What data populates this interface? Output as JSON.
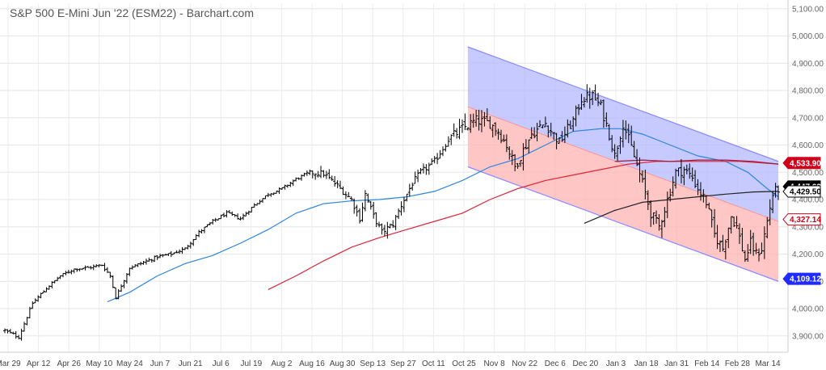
{
  "chart_data": {
    "type": "ohlc",
    "title": "S&P 500 E-Mini Jun '22 (ESM22) - Barchart.com",
    "ylim": [
      3840,
      5120
    ],
    "y_ticks": [
      "3,900.00",
      "4,000.00",
      "4,100.00",
      "4,200.00",
      "4,300.00",
      "4,400.00",
      "4,500.00",
      "4,600.00",
      "4,700.00",
      "4,800.00",
      "4,900.00",
      "5,000.00",
      "5,100.00"
    ],
    "y_tick_values": [
      3900,
      4000,
      4100,
      4200,
      4300,
      4400,
      4500,
      4600,
      4700,
      4800,
      4900,
      5000,
      5100
    ],
    "x_ticks": [
      "Mar 29",
      "Apr 12",
      "Apr 26",
      "May 10",
      "May 24",
      "Jun 7",
      "Jun 21",
      "Jul 6",
      "Jul 19",
      "Aug 2",
      "Aug 16",
      "Aug 30",
      "Sep 13",
      "Sep 27",
      "Oct 11",
      "Oct 25",
      "Nov 8",
      "Nov 22",
      "Dec 6",
      "Dec 20",
      "Jan 3",
      "Jan 18",
      "Jan 31",
      "Feb 14",
      "Feb 28",
      "Mar 14"
    ],
    "grid": true,
    "colors": {
      "bars": "#000000",
      "ma_blue": "#2e86de",
      "ma_red": "#e0243a",
      "ma_dark_red": "#9b1b3c",
      "ma_black": "#222222",
      "channel_upper": "#b3b8ff",
      "channel_lower": "#ffb3b3",
      "channel_edge_blue": "#8a8aff",
      "channel_edge_red": "#ff8a8a"
    },
    "key_anchors": [
      [
        0,
        3920
      ],
      [
        5,
        3895
      ],
      [
        10,
        4020
      ],
      [
        15,
        4075
      ],
      [
        20,
        4120
      ],
      [
        25,
        4145
      ],
      [
        30,
        4150
      ],
      [
        35,
        4160
      ],
      [
        38,
        4120
      ],
      [
        40,
        4040
      ],
      [
        45,
        4150
      ],
      [
        50,
        4170
      ],
      [
        55,
        4190
      ],
      [
        60,
        4200
      ],
      [
        65,
        4220
      ],
      [
        70,
        4280
      ],
      [
        75,
        4320
      ],
      [
        80,
        4350
      ],
      [
        85,
        4330
      ],
      [
        90,
        4380
      ],
      [
        95,
        4420
      ],
      [
        100,
        4440
      ],
      [
        105,
        4475
      ],
      [
        110,
        4500
      ],
      [
        115,
        4495
      ],
      [
        120,
        4450
      ],
      [
        125,
        4400
      ],
      [
        128,
        4330
      ],
      [
        130,
        4420
      ],
      [
        133,
        4340
      ],
      [
        136,
        4280
      ],
      [
        140,
        4310
      ],
      [
        143,
        4380
      ],
      [
        147,
        4460
      ],
      [
        150,
        4500
      ],
      [
        155,
        4540
      ],
      [
        160,
        4620
      ],
      [
        165,
        4660
      ],
      [
        170,
        4690
      ],
      [
        175,
        4680
      ],
      [
        178,
        4650
      ],
      [
        181,
        4600
      ],
      [
        184,
        4520
      ],
      [
        186,
        4560
      ],
      [
        190,
        4640
      ],
      [
        195,
        4680
      ],
      [
        200,
        4610
      ],
      [
        205,
        4690
      ],
      [
        208,
        4770
      ],
      [
        212,
        4780
      ],
      [
        215,
        4740
      ],
      [
        218,
        4640
      ],
      [
        220,
        4560
      ],
      [
        223,
        4680
      ],
      [
        226,
        4590
      ],
      [
        230,
        4460
      ],
      [
        233,
        4350
      ],
      [
        236,
        4300
      ],
      [
        239,
        4400
      ],
      [
        242,
        4500
      ],
      [
        245,
        4510
      ],
      [
        248,
        4480
      ],
      [
        250,
        4440
      ],
      [
        253,
        4390
      ],
      [
        256,
        4270
      ],
      [
        259,
        4220
      ],
      [
        262,
        4340
      ],
      [
        264,
        4300
      ],
      [
        267,
        4180
      ],
      [
        269,
        4240
      ],
      [
        271,
        4200
      ],
      [
        273,
        4220
      ],
      [
        275,
        4320
      ],
      [
        277,
        4420
      ],
      [
        279,
        4440
      ]
    ],
    "moving_averages": [
      {
        "color_key": "ma_blue",
        "points": [
          [
            37,
            4025
          ],
          [
            45,
            4060
          ],
          [
            55,
            4120
          ],
          [
            65,
            4165
          ],
          [
            75,
            4195
          ],
          [
            85,
            4240
          ],
          [
            95,
            4290
          ],
          [
            105,
            4350
          ],
          [
            115,
            4385
          ],
          [
            125,
            4395
          ],
          [
            135,
            4400
          ],
          [
            145,
            4410
          ],
          [
            155,
            4430
          ],
          [
            165,
            4470
          ],
          [
            175,
            4520
          ],
          [
            185,
            4550
          ],
          [
            195,
            4600
          ],
          [
            205,
            4650
          ],
          [
            215,
            4660
          ],
          [
            222,
            4660
          ],
          [
            230,
            4640
          ],
          [
            240,
            4600
          ],
          [
            250,
            4560
          ],
          [
            260,
            4540
          ],
          [
            268,
            4500
          ],
          [
            275,
            4440
          ],
          [
            279,
            4410
          ]
        ]
      },
      {
        "color_key": "ma_red",
        "points": [
          [
            95,
            4070
          ],
          [
            105,
            4120
          ],
          [
            115,
            4175
          ],
          [
            125,
            4225
          ],
          [
            135,
            4260
          ],
          [
            145,
            4290
          ],
          [
            155,
            4320
          ],
          [
            165,
            4350
          ],
          [
            175,
            4400
          ],
          [
            185,
            4440
          ],
          [
            195,
            4470
          ],
          [
            205,
            4490
          ],
          [
            215,
            4510
          ],
          [
            225,
            4530
          ],
          [
            235,
            4540
          ],
          [
            245,
            4540
          ],
          [
            255,
            4540
          ],
          [
            265,
            4540
          ],
          [
            272,
            4535
          ],
          [
            279,
            4530
          ]
        ]
      },
      {
        "color_key": "ma_dark_red",
        "points": [
          [
            220,
            4540
          ],
          [
            230,
            4545
          ],
          [
            240,
            4540
          ],
          [
            250,
            4545
          ],
          [
            260,
            4545
          ],
          [
            270,
            4540
          ],
          [
            279,
            4530
          ]
        ]
      },
      {
        "color_key": "ma_black",
        "points": [
          [
            209,
            4313
          ],
          [
            220,
            4360
          ],
          [
            230,
            4390
          ],
          [
            240,
            4400
          ],
          [
            250,
            4410
          ],
          [
            260,
            4420
          ],
          [
            270,
            4428
          ],
          [
            279,
            4430
          ]
        ]
      }
    ],
    "regression_channel": {
      "x_start": 167,
      "x_end": 279,
      "upper_start": 4960,
      "upper_end": 4540,
      "mid_start": 4740,
      "mid_end": 4320,
      "lower_start": 4520,
      "lower_end": 4100
    },
    "right_flags": [
      {
        "label": "4,533.90",
        "value": 4533.9,
        "bg": "#d0021b",
        "fg": "#ffffff"
      },
      {
        "label": "4,447.63",
        "value": 4447.63,
        "bg": "#000000",
        "fg": "#ffffff"
      },
      {
        "label": "4,429.50",
        "value": 4429.5,
        "bg": "#ffffff",
        "fg": "#000000",
        "border": "#000000"
      },
      {
        "label": "4,327.14",
        "value": 4327.14,
        "bg": "#ffffff",
        "fg": "#d0021b",
        "border": "#d0021b"
      },
      {
        "label": "4,109.12",
        "value": 4109.12,
        "bg": "#1f2bff",
        "fg": "#ffffff"
      }
    ]
  }
}
